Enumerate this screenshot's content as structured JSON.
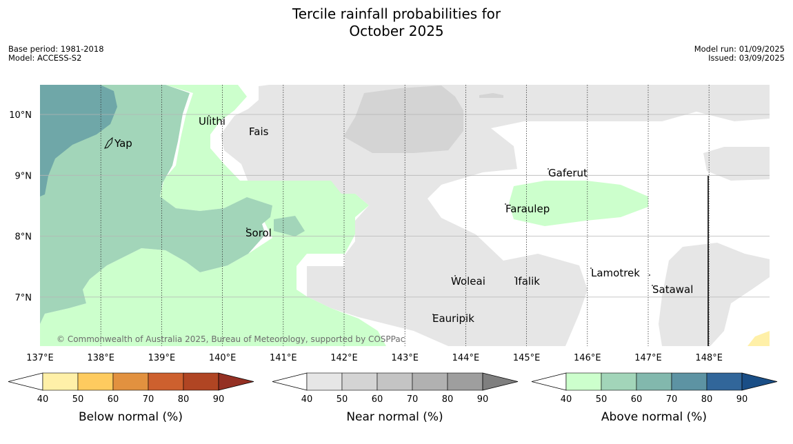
{
  "title": {
    "line1": "Tercile rainfall probabilities for",
    "line2": "October 2025"
  },
  "meta": {
    "base_period": "Base period: 1981-2018",
    "model": "Model: ACCESS-S2",
    "model_run": "Model run: 01/09/2025",
    "issued": "Issued: 03/09/2025"
  },
  "map": {
    "lon_range": [
      137,
      149
    ],
    "lat_range": [
      6.2,
      10.5
    ],
    "lat_ticks": [
      "10°N",
      "9°N",
      "8°N",
      "7°N"
    ],
    "lon_ticks": [
      "137°E",
      "138°E",
      "139°E",
      "140°E",
      "141°E",
      "142°E",
      "143°E",
      "144°E",
      "145°E",
      "146°E",
      "147°E",
      "148°E"
    ],
    "places": [
      "Yap",
      "Ulithi",
      "Fais",
      "Gaferut",
      "Faraulep",
      "Sorol",
      "Woleai",
      "Ifalik",
      "Lamotrek",
      "Satawal",
      "Eauripik"
    ],
    "copyright": "© Commonwealth of Australia 2025, Bureau of Meteorology, supported by COSPPac"
  },
  "legends": [
    {
      "label": "Below normal (%)",
      "ticks": [
        "40",
        "50",
        "60",
        "70",
        "80",
        "90"
      ],
      "colors": [
        "#ffffff",
        "#fff0a8",
        "#fecb5f",
        "#e2913f",
        "#cd602e",
        "#b04523",
        "#943023"
      ]
    },
    {
      "label": "Near normal (%)",
      "ticks": [
        "40",
        "50",
        "60",
        "70",
        "80",
        "90"
      ],
      "colors": [
        "#ffffff",
        "#e6e6e6",
        "#d4d4d4",
        "#c4c4c4",
        "#b1b1b1",
        "#9e9e9e",
        "#7f7f7f"
      ]
    },
    {
      "label": "Above normal (%)",
      "ticks": [
        "40",
        "50",
        "60",
        "70",
        "80",
        "90"
      ],
      "colors": [
        "#ffffff",
        "#ccffcc",
        "#a2d5b9",
        "#82b8ad",
        "#5d93a3",
        "#31669a",
        "#1a4e86"
      ]
    }
  ]
}
